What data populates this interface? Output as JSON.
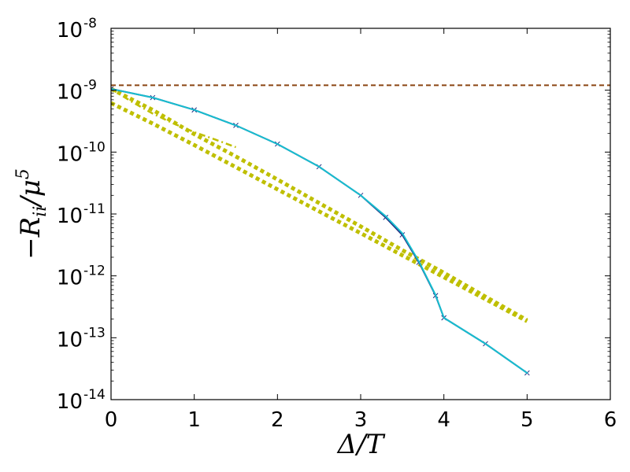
{
  "chart_data": {
    "type": "line",
    "title": "",
    "xlabel": "Δ/T",
    "ylabel": "−R_ii/μ^5",
    "xlim": [
      0,
      6
    ],
    "ylim": [
      1e-14,
      1e-08
    ],
    "yscale": "log",
    "grid": false,
    "legend": "none",
    "x_ticks": [
      {
        "value": 0,
        "label": "0"
      },
      {
        "value": 1,
        "label": "1"
      },
      {
        "value": 2,
        "label": "2"
      },
      {
        "value": 3,
        "label": "3"
      },
      {
        "value": 4,
        "label": "4"
      },
      {
        "value": 5,
        "label": "5"
      },
      {
        "value": 6,
        "label": "6"
      }
    ],
    "y_ticks": [
      {
        "value": 1e-14,
        "base": "10",
        "exp": "-14"
      },
      {
        "value": 1e-13,
        "base": "10",
        "exp": "-13"
      },
      {
        "value": 1e-12,
        "base": "10",
        "exp": "-12"
      },
      {
        "value": 1e-11,
        "base": "10",
        "exp": "-11"
      },
      {
        "value": 1e-10,
        "base": "10",
        "exp": "-10"
      },
      {
        "value": 1e-09,
        "base": "10",
        "exp": "-9"
      },
      {
        "value": 1e-08,
        "base": "10",
        "exp": "-8"
      }
    ],
    "series": [
      {
        "style": "dashed",
        "color": "#8b4513",
        "x": [
          0,
          6
        ],
        "y": [
          1.2e-09,
          1.2e-09
        ]
      },
      {
        "style": "dotted-thick",
        "color": "#bfbf00",
        "x": [
          0,
          0.5,
          1,
          1.5,
          2,
          2.5,
          3,
          3.5,
          4,
          4.5,
          5
        ],
        "y": [
          1.05e-09,
          4.8e-10,
          1.95e-10,
          8.5e-11,
          3.6e-11,
          1.5e-11,
          6.3e-12,
          2.6e-12,
          1.12e-12,
          4.6e-13,
          1.92e-13
        ]
      },
      {
        "style": "dotted-thick",
        "color": "#bfbf00",
        "x": [
          0,
          0.5,
          1,
          1.5,
          2,
          2.5,
          3,
          3.5,
          4,
          4.5,
          5
        ],
        "y": [
          6.2e-10,
          2.9e-10,
          1.3e-10,
          5.7e-11,
          2.5e-11,
          1.1e-11,
          4.9e-12,
          2.15e-12,
          9.5e-13,
          4.2e-13,
          1.85e-13
        ]
      },
      {
        "style": "dashdot",
        "color": "#bfbf00",
        "x": [
          0,
          0.25,
          0.5,
          0.75,
          1,
          1.25,
          1.5
        ],
        "y": [
          1.05e-09,
          6.5e-10,
          4.2e-10,
          2.9e-10,
          2.1e-10,
          1.6e-10,
          1.2e-10
        ]
      },
      {
        "style": "solid",
        "color": "#1f2a80",
        "x": [
          0,
          0.5,
          1,
          1.5,
          2,
          2.5,
          3,
          3.3,
          3.5,
          3.7,
          3.9,
          4,
          4.5,
          5
        ],
        "y": [
          1.05e-09,
          7.6e-10,
          4.8e-10,
          2.7e-10,
          1.35e-10,
          5.8e-11,
          2e-11,
          8.8e-12,
          4.6e-12,
          1.65e-12,
          4.8e-13,
          2.1e-13,
          8e-14,
          2.7e-14
        ]
      },
      {
        "style": "solid",
        "color": "#17becf",
        "x": [
          0,
          0.5,
          1,
          1.5,
          2,
          2.5,
          3,
          3.3,
          3.5,
          3.7,
          3.9,
          4,
          4.5,
          5
        ],
        "y": [
          1.05e-09,
          7.6e-10,
          4.8e-10,
          2.7e-10,
          1.35e-10,
          5.8e-11,
          2e-11,
          9.2e-12,
          4.9e-12,
          1.7e-12,
          4.9e-13,
          2.1e-13,
          8e-14,
          2.7e-14
        ]
      }
    ]
  }
}
